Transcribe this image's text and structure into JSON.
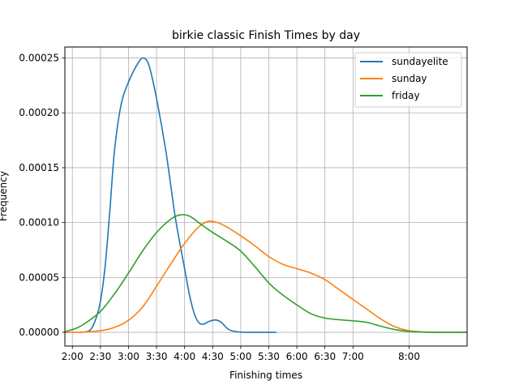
{
  "chart_data": {
    "type": "line",
    "title": "birkie classic Finish Times by day",
    "xlabel": "Finishing times",
    "ylabel": "Frequency",
    "grid": true,
    "legend_position": "top-right",
    "xlim": [
      "1:52",
      "9:02"
    ],
    "ylim": [
      -1.25e-05,
      0.00026
    ],
    "x_tick_labels": [
      "2:00",
      "2:30",
      "3:00",
      "3:30",
      "4:00",
      "4:30",
      "5:00",
      "5:30",
      "6:00",
      "6:30",
      "7:00",
      "8:00"
    ],
    "y_tick_labels": [
      "0.00000",
      "0.00005",
      "0.00010",
      "0.00015",
      "0.00020",
      "0.00025"
    ],
    "x_ticks": [
      "2:00",
      "2:30",
      "3:00",
      "3:30",
      "4:00",
      "4:30",
      "5:00",
      "5:30",
      "6:00",
      "6:30",
      "7:00",
      "8:00"
    ],
    "y_ticks": [
      0,
      5e-05,
      0.0001,
      0.00015,
      0.0002,
      0.00025
    ],
    "series": [
      {
        "name": "sundayelite",
        "color": "#1f77b4",
        "points": [
          [
            "2:08",
            0.0
          ],
          [
            "2:15",
            5e-07
          ],
          [
            "2:20",
            3e-06
          ],
          [
            "2:25",
            1.2e-05
          ],
          [
            "2:30",
            2.8e-05
          ],
          [
            "2:35",
            6e-05
          ],
          [
            "2:40",
            0.00011
          ],
          [
            "2:45",
            0.000165
          ],
          [
            "2:52",
            0.000207
          ],
          [
            "3:00",
            0.000228
          ],
          [
            "3:10",
            0.000245
          ],
          [
            "3:16",
            0.00025
          ],
          [
            "3:22",
            0.000243
          ],
          [
            "3:30",
            0.000213
          ],
          [
            "3:40",
            0.000165
          ],
          [
            "3:50",
            0.000105
          ],
          [
            "4:00",
            5.8e-05
          ],
          [
            "4:05",
            3.5e-05
          ],
          [
            "4:10",
            1.8e-05
          ],
          [
            "4:15",
            9e-06
          ],
          [
            "4:20",
            7.5e-06
          ],
          [
            "4:25",
            9.5e-06
          ],
          [
            "4:30",
            1.1e-05
          ],
          [
            "4:35",
            1.1e-05
          ],
          [
            "4:40",
            8.5e-06
          ],
          [
            "4:45",
            4e-06
          ],
          [
            "4:50",
            1.5e-06
          ],
          [
            "5:00",
            2e-07
          ],
          [
            "5:20",
            0.0
          ],
          [
            "5:38",
            0.0
          ]
        ]
      },
      {
        "name": "sunday",
        "color": "#ff7f0e",
        "points": [
          [
            "1:52",
            0.0
          ],
          [
            "2:10",
            2e-07
          ],
          [
            "2:30",
            1.5e-06
          ],
          [
            "2:45",
            4.5e-06
          ],
          [
            "3:00",
            1.1e-05
          ],
          [
            "3:15",
            2.3e-05
          ],
          [
            "3:30",
            4.2e-05
          ],
          [
            "3:45",
            6.2e-05
          ],
          [
            "4:00",
            8.1e-05
          ],
          [
            "4:15",
            9.6e-05
          ],
          [
            "4:25",
            0.000101
          ],
          [
            "4:35",
            0.0001
          ],
          [
            "4:45",
            9.6e-05
          ],
          [
            "5:00",
            8.8e-05
          ],
          [
            "5:15",
            7.9e-05
          ],
          [
            "5:30",
            6.9e-05
          ],
          [
            "5:45",
            6.2e-05
          ],
          [
            "6:00",
            5.8e-05
          ],
          [
            "6:15",
            5.4e-05
          ],
          [
            "6:30",
            4.8e-05
          ],
          [
            "6:45",
            3.9e-05
          ],
          [
            "7:00",
            3e-05
          ],
          [
            "7:15",
            2.1e-05
          ],
          [
            "7:30",
            1.2e-05
          ],
          [
            "7:45",
            5e-06
          ],
          [
            "8:00",
            1.5e-06
          ],
          [
            "8:15",
            3e-07
          ],
          [
            "8:30",
            0.0
          ],
          [
            "9:02",
            0.0
          ]
        ]
      },
      {
        "name": "friday",
        "color": "#2ca02c",
        "points": [
          [
            "1:52",
            5e-07
          ],
          [
            "2:05",
            4e-06
          ],
          [
            "2:15",
            9e-06
          ],
          [
            "2:30",
            1.9e-05
          ],
          [
            "2:45",
            3.5e-05
          ],
          [
            "3:00",
            5.4e-05
          ],
          [
            "3:15",
            7.4e-05
          ],
          [
            "3:30",
            9.1e-05
          ],
          [
            "3:45",
            0.000103
          ],
          [
            "3:55",
            0.000107
          ],
          [
            "4:05",
            0.000106
          ],
          [
            "4:15",
            0.0001
          ],
          [
            "4:30",
            9.1e-05
          ],
          [
            "4:45",
            8.3e-05
          ],
          [
            "5:00",
            7.4e-05
          ],
          [
            "5:15",
            6e-05
          ],
          [
            "5:30",
            4.5e-05
          ],
          [
            "5:45",
            3.4e-05
          ],
          [
            "6:00",
            2.5e-05
          ],
          [
            "6:15",
            1.7e-05
          ],
          [
            "6:30",
            1.3e-05
          ],
          [
            "6:45",
            1.15e-05
          ],
          [
            "7:00",
            1.05e-05
          ],
          [
            "7:15",
            9e-06
          ],
          [
            "7:30",
            5.5e-06
          ],
          [
            "7:45",
            2.5e-06
          ],
          [
            "8:00",
            8e-07
          ],
          [
            "8:30",
            0.0
          ],
          [
            "9:02",
            0.0
          ]
        ]
      }
    ]
  }
}
